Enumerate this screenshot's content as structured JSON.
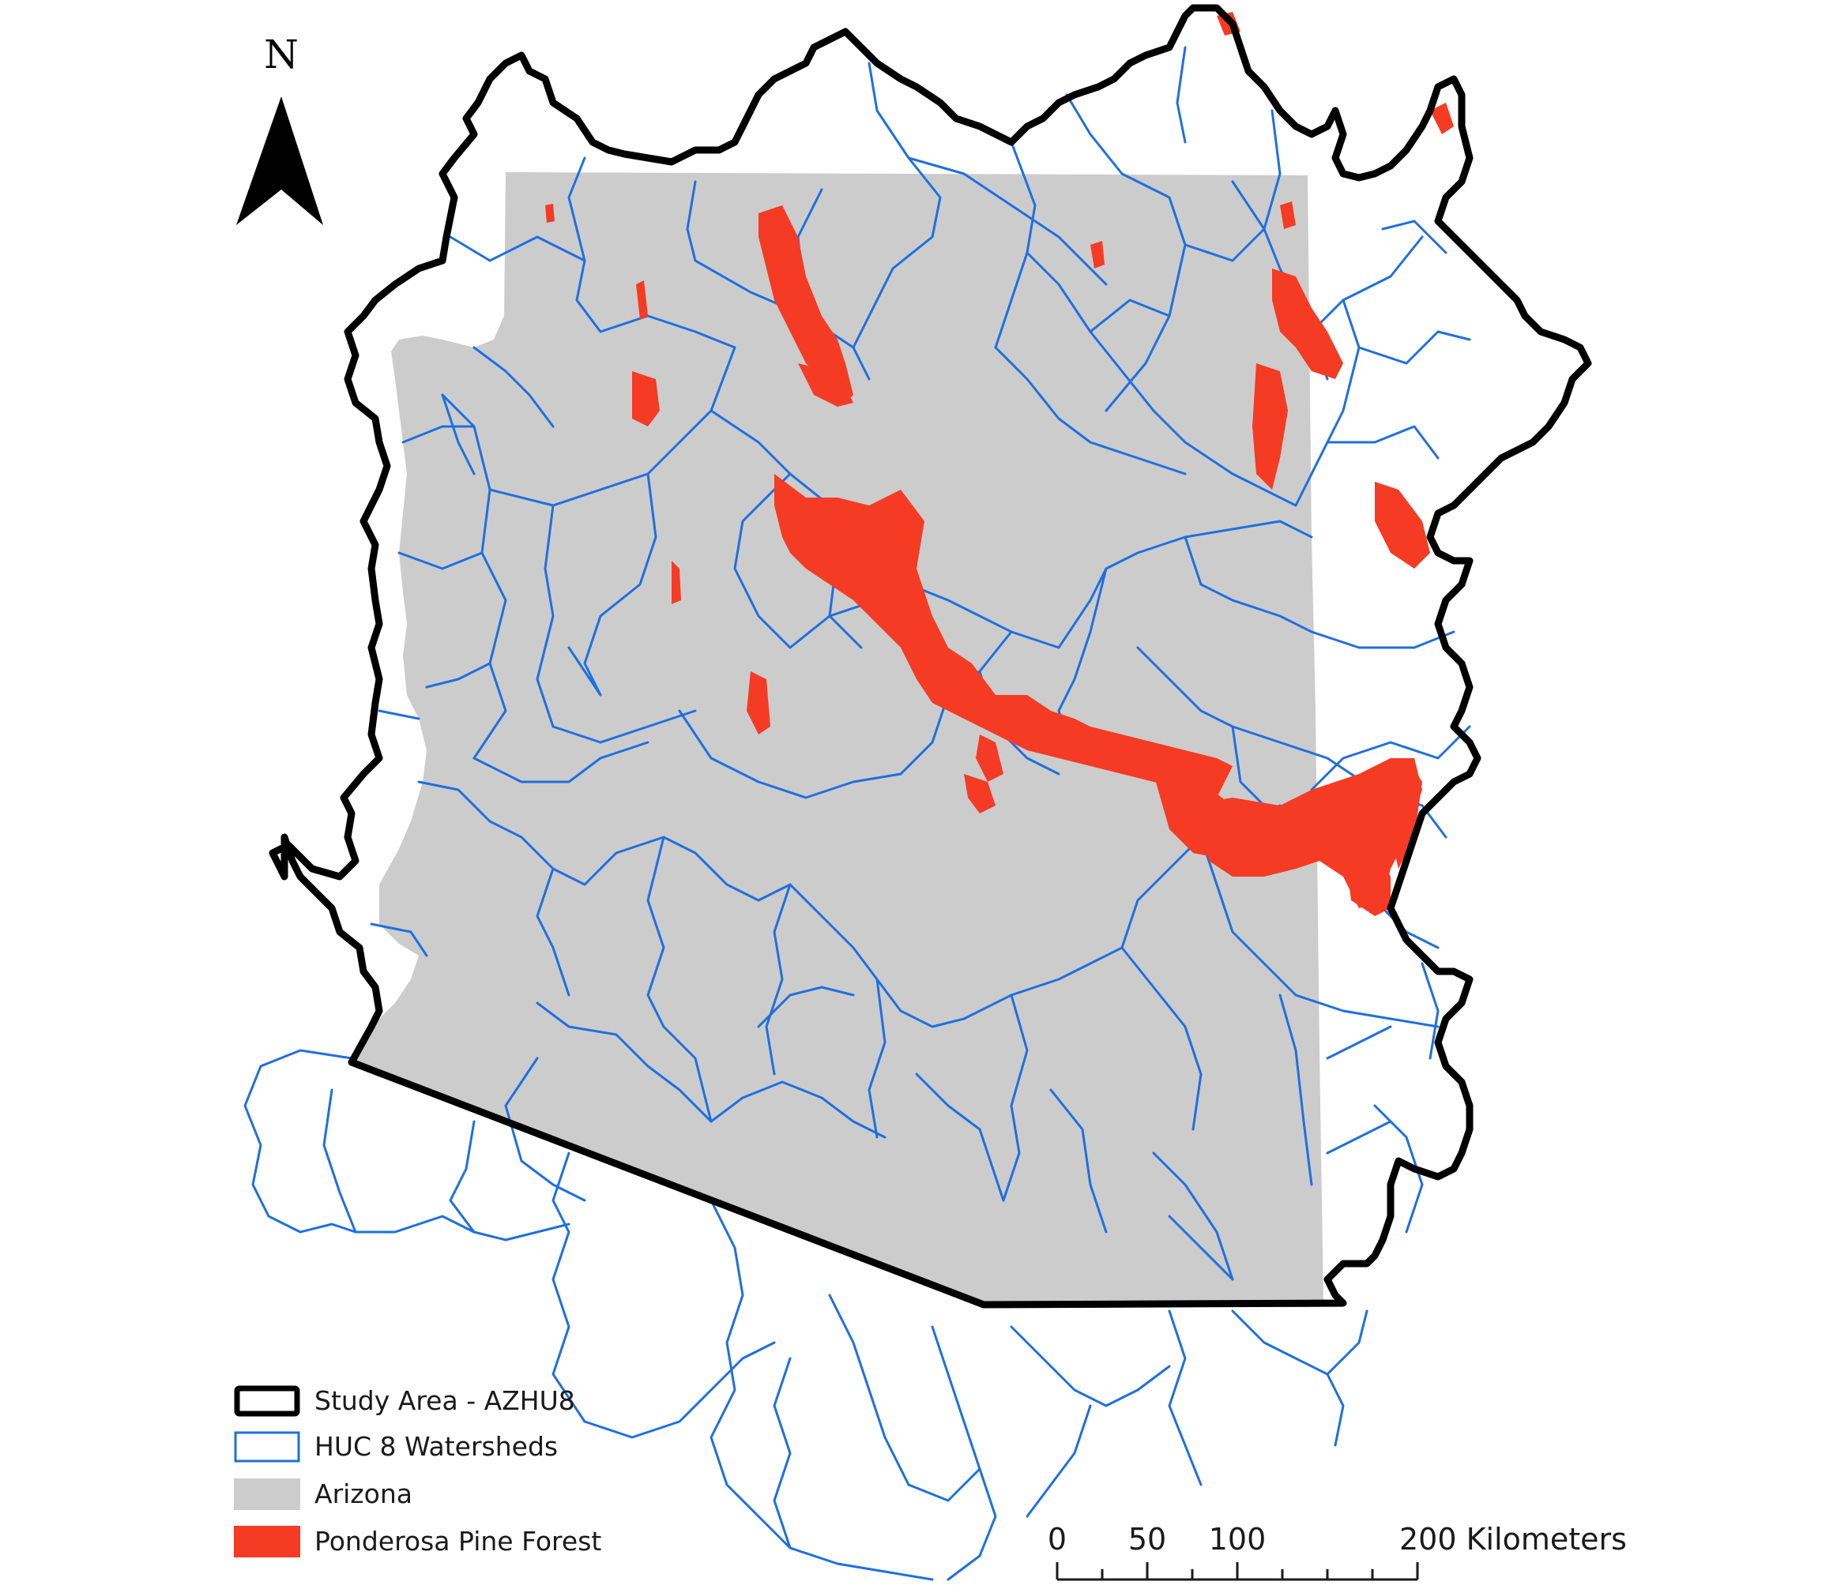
{
  "map": {
    "north_arrow": {
      "label": "N",
      "icon": "north-arrow-icon"
    },
    "colors": {
      "study_area_outline": "#000000",
      "watershed_lines": "#1f6fe0",
      "arizona_fill": "#cccccc",
      "ponderosa_pine": "#f53b24",
      "background": "#ffffff"
    }
  },
  "legend": {
    "items": [
      {
        "label": "Study Area - AZHU8",
        "swatch": "outline-black"
      },
      {
        "label": "HUC 8 Watersheds",
        "swatch": "outline-blue"
      },
      {
        "label": "Arizona",
        "swatch": "fill-gray"
      },
      {
        "label": "Ponderosa Pine Forest",
        "swatch": "fill-red"
      }
    ]
  },
  "scale_bar": {
    "ticks": [
      0,
      25,
      50,
      75,
      100,
      125,
      150,
      175,
      200
    ],
    "labels": [
      {
        "value": 0,
        "text": "0"
      },
      {
        "value": 50,
        "text": "50"
      },
      {
        "value": 100,
        "text": "100"
      },
      {
        "value": 200,
        "text": "200 Kilometers"
      }
    ]
  }
}
